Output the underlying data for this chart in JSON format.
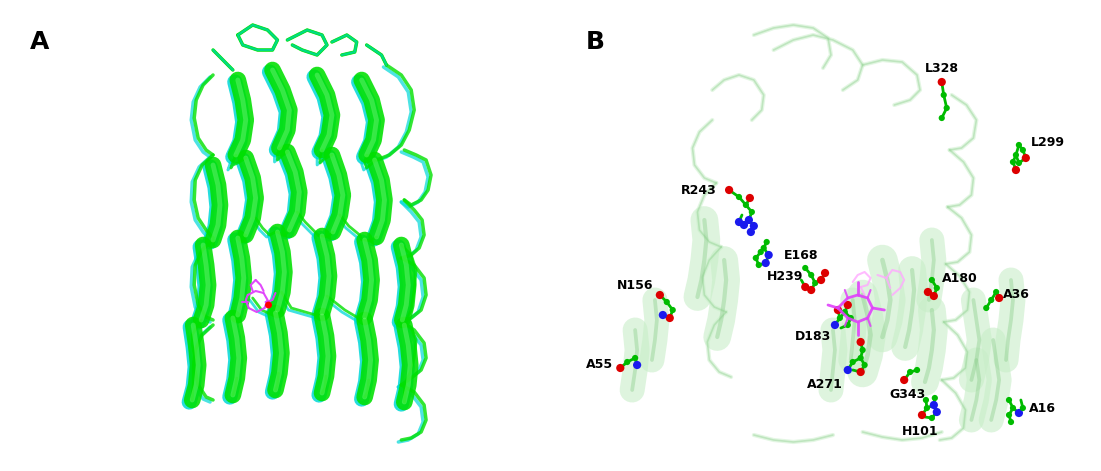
{
  "fig_width": 11.01,
  "fig_height": 4.71,
  "dpi": 100,
  "bg_color": "#ffffff",
  "panel_A_label": "A",
  "panel_B_label": "B",
  "label_fontsize": 18,
  "label_fontweight": "bold",
  "residue_label_fontsize": 9,
  "green": "#00e000",
  "cyan": "#00d8d8",
  "light_green_bg": "#d8f5d8",
  "stick_green": "#00bb00",
  "stick_blue": "#1a1aee",
  "stick_red": "#dd0000",
  "heme_magenta": "#e040fb",
  "heme_pink": "#ffaaff",
  "helix_green_dark": "#00cc00",
  "helix_cyan_dark": "#00bbbb"
}
